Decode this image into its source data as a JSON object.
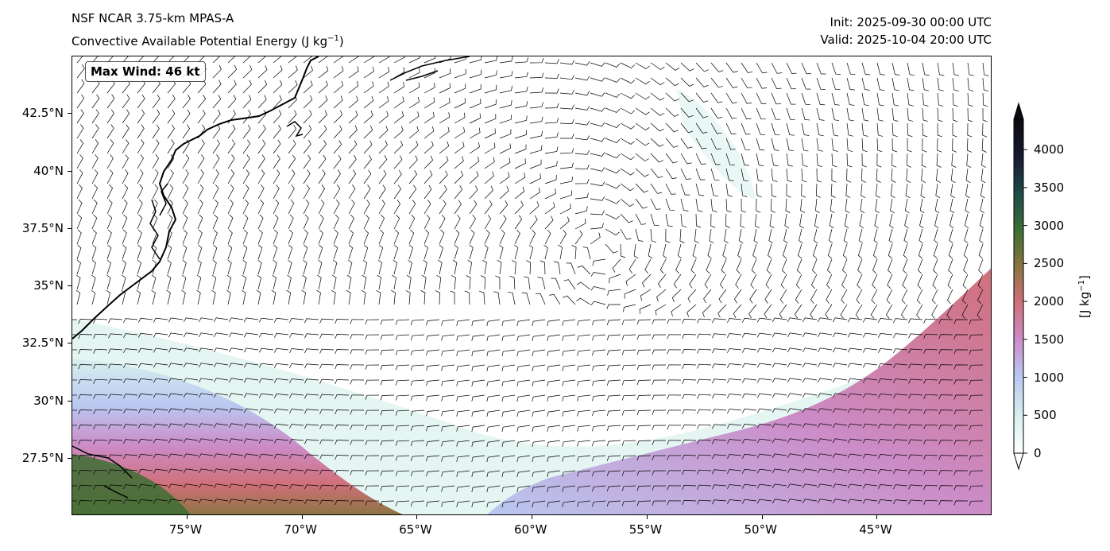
{
  "header": {
    "model": "NSF NCAR 3.75-km MPAS-A",
    "field_title": "Convective Available Potential Energy (J kg",
    "field_sup": "−1",
    "field_close": ")",
    "init": "Init: 2025-09-30 00:00 UTC",
    "valid": "Valid: 2025-10-04 20:00 UTC"
  },
  "annotation": {
    "max_wind": "Max Wind: 46 kt"
  },
  "map": {
    "projection": "PlateCarree",
    "lon_range": [
      -80,
      -40
    ],
    "lat_range": [
      25,
      45
    ],
    "lat_ticks": [
      "42.5°N",
      "40°N",
      "37.5°N",
      "35°N",
      "32.5°N",
      "30°N",
      "27.5°N"
    ],
    "lat_values": [
      42.5,
      40,
      37.5,
      35,
      32.5,
      30,
      27.5
    ],
    "lon_ticks": [
      "75°W",
      "70°W",
      "65°W",
      "60°W",
      "55°W",
      "50°W",
      "45°W"
    ],
    "lon_values": [
      -75,
      -70,
      -65,
      -60,
      -55,
      -50,
      -45
    ],
    "wind_center": [
      -57,
      36.5
    ]
  },
  "colorbar": {
    "label": "[J kg",
    "label_sup": "−1",
    "label_close": "]",
    "ticks": [
      "4000",
      "3500",
      "3000",
      "2500",
      "2000",
      "1500",
      "1000",
      "500",
      "0"
    ],
    "tick_values": [
      4000,
      3500,
      3000,
      2500,
      2000,
      1500,
      1000,
      500,
      0
    ],
    "max": 4400,
    "colors": [
      "#ffffff",
      "#d8f0ef",
      "#b9c8f0",
      "#cc8cc8",
      "#d0707a",
      "#8a7440",
      "#3c6e34",
      "#1f4a4a",
      "#161830",
      "#0a0a10"
    ]
  }
}
